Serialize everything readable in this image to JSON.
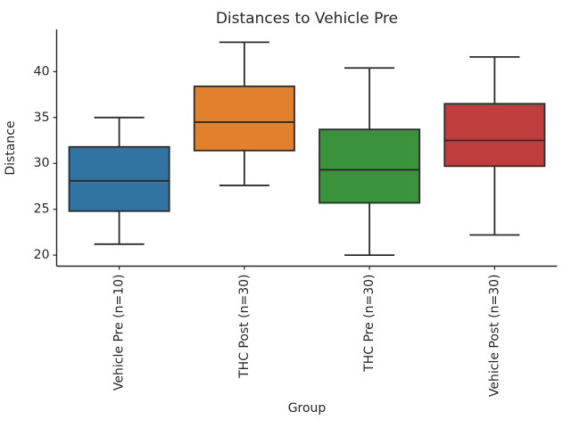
{
  "figure": {
    "background": "#ffffff",
    "text_color": "#262626",
    "line_color": "#2b2b2b"
  },
  "chart_data": {
    "type": "box",
    "title": "Distances to Vehicle Pre",
    "xlabel": "Group",
    "ylabel": "Distance",
    "yticks": [
      20,
      25,
      30,
      35,
      40
    ],
    "ylim": [
      18.8,
      44.6
    ],
    "x_tick_rotation": 90,
    "grid": false,
    "legend": "none",
    "groups": [
      {
        "label": "Vehicle Pre (n=10)",
        "color": "#3274a1",
        "whisker_low": 21.2,
        "q1": 24.8,
        "median": 28.1,
        "q3": 31.8,
        "whisker_high": 35.0
      },
      {
        "label": "THC Post (n=30)",
        "color": "#e1812c",
        "whisker_low": 27.6,
        "q1": 31.4,
        "median": 34.5,
        "q3": 38.4,
        "whisker_high": 43.2
      },
      {
        "label": "THC Pre (n=30)",
        "color": "#3a923a",
        "whisker_low": 20.0,
        "q1": 25.7,
        "median": 29.3,
        "q3": 33.7,
        "whisker_high": 40.4
      },
      {
        "label": "Vehicle Post (n=30)",
        "color": "#c03d3e",
        "whisker_low": 22.2,
        "q1": 29.7,
        "median": 32.5,
        "q3": 36.5,
        "whisker_high": 41.6
      }
    ]
  }
}
